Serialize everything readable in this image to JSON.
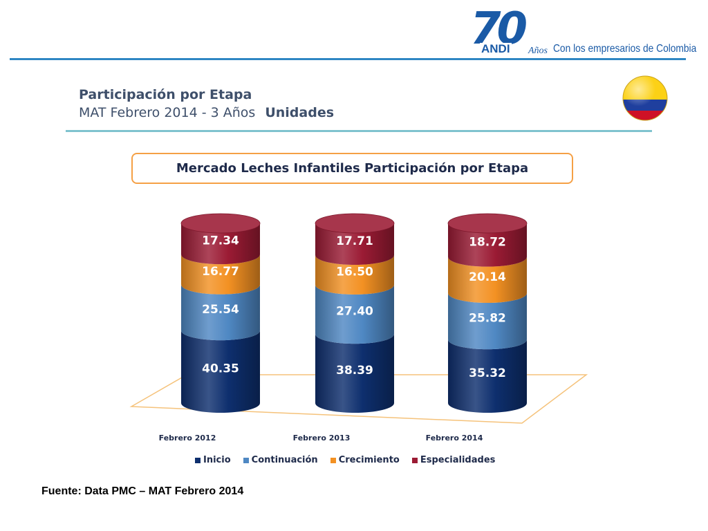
{
  "logo": {
    "number": "70",
    "brand": "ANDI",
    "anos": "Años",
    "tagline": "Con los empresarios de Colombia"
  },
  "header": {
    "title": "Participación por Etapa",
    "subtitle": "MAT Febrero 2014 - 3 Años",
    "unit": "Unidades"
  },
  "source": "Fuente: Data PMC – MAT Febrero 2014",
  "chart_data": {
    "type": "bar",
    "stacked": true,
    "style": "3d-cylinder",
    "title": "Mercado Leches Infantiles Participación por Etapa",
    "categories": [
      "Febrero 2012",
      "Febrero 2013",
      "Febrero 2014"
    ],
    "series": [
      {
        "name": "Inicio",
        "color": "#0e2f6e",
        "values": [
          40.35,
          38.39,
          35.32
        ]
      },
      {
        "name": "Continuación",
        "color": "#4f88c3",
        "values": [
          25.54,
          27.4,
          25.82
        ]
      },
      {
        "name": "Crecimiento",
        "color": "#f39123",
        "values": [
          16.77,
          16.5,
          20.14
        ]
      },
      {
        "name": "Especialidades",
        "color": "#9b1b34",
        "values": [
          17.34,
          17.71,
          18.72
        ]
      }
    ],
    "legend": "bottom",
    "grid": false
  },
  "colors": {
    "accent_blue": "#2f86c3",
    "title_rule": "#7fc3cf",
    "title_box_border": "#f5a045",
    "floor_border": "#f5c27a"
  }
}
